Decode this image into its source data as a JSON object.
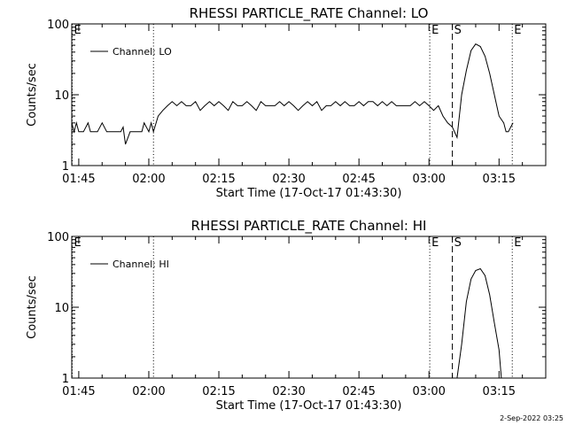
{
  "footer": {
    "timestamp": "2-Sep-2022 03:25"
  },
  "chart_data": [
    {
      "type": "line",
      "title": "RHESSI PARTICLE_RATE Channel: LO",
      "xlabel": "Start Time (17-Oct-17 01:43:30)",
      "ylabel": "Counts/sec",
      "x_scale": "time",
      "y_scale": "log",
      "xlim": [
        "01:43:30",
        "03:25:00"
      ],
      "ylim": [
        1,
        100
      ],
      "xticks": [
        "01:45",
        "02:00",
        "02:15",
        "02:30",
        "02:45",
        "03:00",
        "03:15"
      ],
      "yticks": [
        "1",
        "10",
        "100"
      ],
      "legend": {
        "position": "top-left",
        "entries": [
          "Channel: LO"
        ]
      },
      "markers": [
        {
          "label": "E",
          "time": "01:43:30",
          "style": "dotted"
        },
        {
          "label": "",
          "time": "02:01:00",
          "style": "dotted"
        },
        {
          "label": "E",
          "time": "03:00:10",
          "style": "dotted"
        },
        {
          "label": "S",
          "time": "03:05:00",
          "style": "dashed"
        },
        {
          "label": "E",
          "time": "03:17:50",
          "style": "dotted"
        }
      ],
      "series": [
        {
          "name": "Channel: LO",
          "x": [
            "01:43:30",
            "01:44:00",
            "01:44:30",
            "01:45:00",
            "01:46:00",
            "01:47:00",
            "01:47:30",
            "01:48:00",
            "01:49:00",
            "01:50:00",
            "01:51:00",
            "01:52:00",
            "01:53:00",
            "01:54:00",
            "01:54:30",
            "01:55:00",
            "01:56:00",
            "01:57:00",
            "01:58:00",
            "01:58:30",
            "01:59:00",
            "02:00:00",
            "02:00:30",
            "02:01:00",
            "02:02:00",
            "02:03:00",
            "02:04:00",
            "02:05:00",
            "02:06:00",
            "02:07:00",
            "02:08:00",
            "02:09:00",
            "02:10:00",
            "02:11:00",
            "02:12:00",
            "02:13:00",
            "02:14:00",
            "02:15:00",
            "02:16:00",
            "02:17:00",
            "02:18:00",
            "02:19:00",
            "02:20:00",
            "02:21:00",
            "02:22:00",
            "02:23:00",
            "02:24:00",
            "02:25:00",
            "02:26:00",
            "02:27:00",
            "02:28:00",
            "02:29:00",
            "02:30:00",
            "02:31:00",
            "02:32:00",
            "02:33:00",
            "02:34:00",
            "02:35:00",
            "02:36:00",
            "02:37:00",
            "02:38:00",
            "02:39:00",
            "02:40:00",
            "02:41:00",
            "02:42:00",
            "02:43:00",
            "02:44:00",
            "02:45:00",
            "02:46:00",
            "02:47:00",
            "02:48:00",
            "02:49:00",
            "02:50:00",
            "02:51:00",
            "02:52:00",
            "02:53:00",
            "02:54:00",
            "02:55:00",
            "02:56:00",
            "02:57:00",
            "02:58:00",
            "02:59:00",
            "03:00:00",
            "03:01:00",
            "03:02:00",
            "03:03:00",
            "03:04:00",
            "03:05:00",
            "03:06:00",
            "03:07:00",
            "03:08:00",
            "03:09:00",
            "03:10:00",
            "03:11:00",
            "03:12:00",
            "03:13:00",
            "03:14:00",
            "03:15:00",
            "03:16:00",
            "03:16:30",
            "03:17:00",
            "03:17:30",
            "03:18:00"
          ],
          "y": [
            4,
            3,
            4,
            3,
            3,
            4,
            3,
            3,
            3,
            4,
            3,
            3,
            3,
            3,
            3.5,
            2,
            3,
            3,
            3,
            3,
            4,
            3,
            4,
            3,
            5,
            6,
            7,
            8,
            7,
            8,
            7,
            7,
            8,
            6,
            7,
            8,
            7,
            8,
            7,
            6,
            8,
            7,
            7,
            8,
            7,
            6,
            8,
            7,
            7,
            7,
            8,
            7,
            8,
            7,
            6,
            7,
            8,
            7,
            8,
            6,
            7,
            7,
            8,
            7,
            8,
            7,
            7,
            8,
            7,
            8,
            8,
            7,
            8,
            7,
            8,
            7,
            7,
            7,
            7,
            8,
            7,
            8,
            7,
            6,
            7,
            5,
            4,
            3.5,
            2.5,
            10,
            22,
            42,
            52,
            48,
            35,
            20,
            10,
            5,
            4,
            3,
            3,
            3.5,
            4
          ]
        }
      ]
    },
    {
      "type": "line",
      "title": "RHESSI PARTICLE_RATE Channel: HI",
      "xlabel": "Start Time (17-Oct-17 01:43:30)",
      "ylabel": "Counts/sec",
      "x_scale": "time",
      "y_scale": "log",
      "xlim": [
        "01:43:30",
        "03:25:00"
      ],
      "ylim": [
        1,
        100
      ],
      "xticks": [
        "01:45",
        "02:00",
        "02:15",
        "02:30",
        "02:45",
        "03:00",
        "03:15"
      ],
      "yticks": [
        "1",
        "10",
        "100"
      ],
      "legend": {
        "position": "top-left",
        "entries": [
          "Channel: HI"
        ]
      },
      "markers": [
        {
          "label": "E",
          "time": "01:43:30",
          "style": "dotted"
        },
        {
          "label": "",
          "time": "02:01:00",
          "style": "dotted"
        },
        {
          "label": "E",
          "time": "03:00:10",
          "style": "dotted"
        },
        {
          "label": "S",
          "time": "03:05:00",
          "style": "dashed"
        },
        {
          "label": "E",
          "time": "03:17:50",
          "style": "dotted"
        }
      ],
      "series": [
        {
          "name": "Channel: HI",
          "x": [
            "03:06:00",
            "03:07:00",
            "03:08:00",
            "03:09:00",
            "03:10:00",
            "03:11:00",
            "03:12:00",
            "03:13:00",
            "03:14:00",
            "03:15:00",
            "03:15:30"
          ],
          "y": [
            1,
            3,
            12,
            25,
            33,
            35,
            28,
            15,
            6,
            2.5,
            1
          ]
        }
      ]
    }
  ]
}
